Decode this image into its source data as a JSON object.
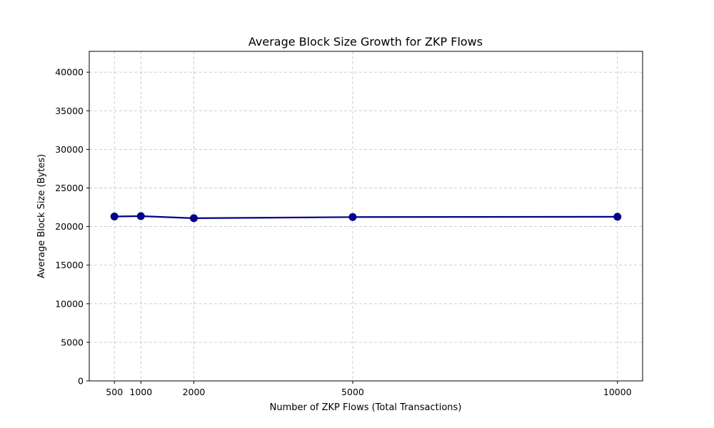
{
  "chart_data": {
    "type": "line",
    "title": "Average Block Size Growth for ZKP Flows",
    "xlabel": "Number of ZKP Flows (Total Transactions)",
    "ylabel": "Average Block Size (Bytes)",
    "x": [
      500,
      1000,
      2000,
      5000,
      10000
    ],
    "series": [
      {
        "values": [
          21300,
          21350,
          21080,
          21230,
          21270
        ],
        "color": "#00008b",
        "marker": "circle"
      }
    ],
    "xticks": [
      500,
      1000,
      2000,
      5000,
      10000
    ],
    "yticks": [
      0,
      5000,
      10000,
      15000,
      20000,
      25000,
      30000,
      35000,
      40000
    ],
    "xlim": [
      25,
      10475
    ],
    "ylim": [
      0,
      42700
    ],
    "grid": true,
    "grid_style": "dashed",
    "grid_color": "#c8c8c8"
  }
}
